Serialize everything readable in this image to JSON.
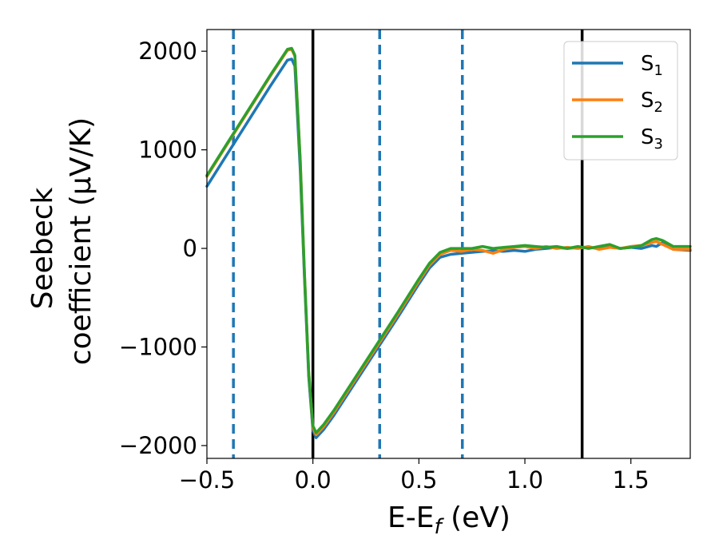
{
  "chart_data": {
    "type": "line",
    "title": "",
    "xlabel": "E-E",
    "xlabel_sub": "f",
    "xlabel_unit": " (eV)",
    "ylabel_line1": "Seebeck",
    "ylabel_line2": "coefficient  (μV/K)",
    "xlim": [
      -0.5,
      1.78
    ],
    "ylim": [
      -2130,
      2220
    ],
    "xticks": [
      -0.5,
      0.0,
      0.5,
      1.0,
      1.5
    ],
    "xtick_labels": [
      "−0.5",
      "0.0",
      "0.5",
      "1.0",
      "1.5"
    ],
    "yticks": [
      2000,
      1000,
      0,
      -1000,
      -2000
    ],
    "ytick_labels": [
      "2000",
      "1000",
      "0",
      "−1000",
      "−2000"
    ],
    "grid": false,
    "legend_position": "top-right",
    "vlines_solid": [
      0.0,
      1.27
    ],
    "vlines_dashed": [
      -0.375,
      0.315,
      0.705
    ],
    "vline_solid_color": "#000000",
    "vline_dashed_color": "#1f77b4",
    "series": [
      {
        "name": "S",
        "sub": "1",
        "color": "#1f77b4",
        "x": [
          -0.5,
          -0.4,
          -0.3,
          -0.2,
          -0.12,
          -0.1,
          -0.085,
          -0.06,
          -0.04,
          -0.02,
          0.0,
          0.015,
          0.05,
          0.1,
          0.2,
          0.3,
          0.4,
          0.5,
          0.55,
          0.6,
          0.65,
          0.7,
          0.75,
          0.8,
          0.85,
          0.9,
          0.95,
          1.0,
          1.05,
          1.1,
          1.15,
          1.2,
          1.25,
          1.3,
          1.35,
          1.4,
          1.45,
          1.5,
          1.55,
          1.6,
          1.62,
          1.65,
          1.7,
          1.78
        ],
        "y": [
          630,
          970,
          1310,
          1650,
          1910,
          1920,
          1850,
          800,
          -300,
          -1300,
          -1850,
          -1920,
          -1840,
          -1690,
          -1360,
          -1030,
          -700,
          -360,
          -200,
          -90,
          -60,
          -50,
          -40,
          -30,
          -25,
          -30,
          -20,
          -30,
          -10,
          0,
          10,
          0,
          10,
          10,
          0,
          20,
          0,
          10,
          0,
          30,
          20,
          60,
          -10,
          -20
        ]
      },
      {
        "name": "S",
        "sub": "2",
        "color": "#ff7f0e",
        "x": [
          -0.5,
          -0.4,
          -0.3,
          -0.2,
          -0.12,
          -0.1,
          -0.085,
          -0.06,
          -0.04,
          -0.02,
          0.0,
          0.015,
          0.05,
          0.1,
          0.2,
          0.3,
          0.4,
          0.5,
          0.55,
          0.6,
          0.65,
          0.7,
          0.75,
          0.8,
          0.85,
          0.9,
          0.95,
          1.0,
          1.05,
          1.1,
          1.15,
          1.2,
          1.25,
          1.3,
          1.35,
          1.4,
          1.45,
          1.5,
          1.55,
          1.6,
          1.62,
          1.65,
          1.7,
          1.78
        ],
        "y": [
          730,
          1070,
          1410,
          1750,
          2010,
          2020,
          1950,
          900,
          -250,
          -1250,
          -1820,
          -1890,
          -1810,
          -1660,
          -1330,
          -1000,
          -670,
          -330,
          -170,
          -60,
          -20,
          -30,
          -10,
          -20,
          -50,
          -10,
          10,
          20,
          0,
          20,
          0,
          10,
          0,
          20,
          -10,
          10,
          0,
          20,
          30,
          60,
          70,
          40,
          -10,
          -10
        ]
      },
      {
        "name": "S",
        "sub": "3",
        "color": "#2ca02c",
        "x": [
          -0.5,
          -0.4,
          -0.3,
          -0.2,
          -0.12,
          -0.1,
          -0.085,
          -0.06,
          -0.04,
          -0.02,
          0.0,
          0.015,
          0.05,
          0.1,
          0.2,
          0.3,
          0.4,
          0.5,
          0.55,
          0.6,
          0.65,
          0.7,
          0.75,
          0.8,
          0.85,
          0.9,
          0.95,
          1.0,
          1.05,
          1.1,
          1.15,
          1.2,
          1.25,
          1.3,
          1.35,
          1.4,
          1.45,
          1.5,
          1.55,
          1.6,
          1.62,
          1.65,
          1.7,
          1.78
        ],
        "y": [
          740,
          1080,
          1420,
          1760,
          2020,
          2030,
          1960,
          900,
          -250,
          -1250,
          -1800,
          -1870,
          -1790,
          -1640,
          -1310,
          -980,
          -650,
          -310,
          -150,
          -40,
          0,
          0,
          0,
          20,
          0,
          10,
          20,
          30,
          20,
          10,
          20,
          0,
          20,
          0,
          20,
          40,
          0,
          10,
          30,
          90,
          100,
          80,
          20,
          20
        ]
      }
    ]
  }
}
